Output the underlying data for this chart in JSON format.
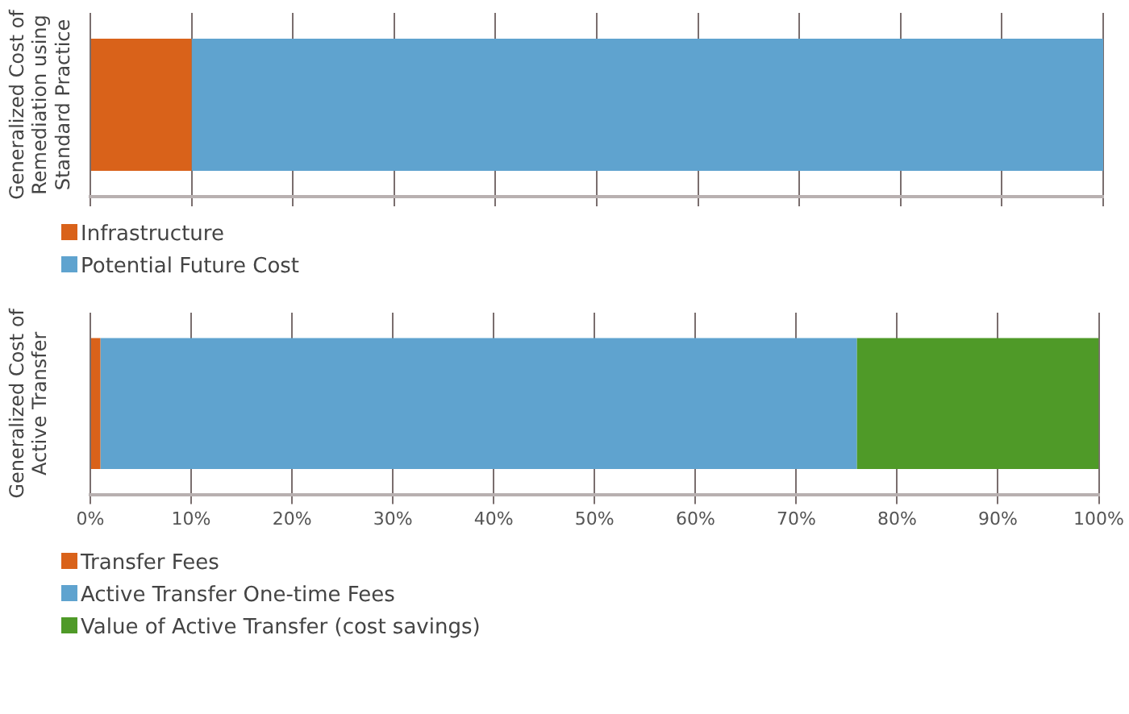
{
  "chart_data": [
    {
      "type": "bar",
      "orientation": "horizontal",
      "stacked": true,
      "ylabel": "Generalized Cost of Remediation using Standard Practice",
      "categories": [
        null
      ],
      "series": [
        {
          "name": "Infrastructure",
          "color": "#d9621a",
          "values": [
            10
          ]
        },
        {
          "name": "Potential Future Cost",
          "color": "#5fa3cf",
          "values": [
            90
          ]
        }
      ],
      "xlim": [
        0,
        100
      ],
      "xticks": [
        0,
        10,
        20,
        30,
        40,
        50,
        60,
        70,
        80,
        90,
        100
      ],
      "tick_labels": false,
      "grid": "x",
      "legend": "bottom left"
    },
    {
      "type": "bar",
      "orientation": "horizontal",
      "stacked": true,
      "ylabel": "Generalized Cost of Active Transfer",
      "categories": [
        null
      ],
      "series": [
        {
          "name": "Transfer Fees",
          "color": "#d9621a",
          "values": [
            1
          ]
        },
        {
          "name": "Active Transfer One-time Fees",
          "color": "#5fa3cf",
          "values": [
            75
          ]
        },
        {
          "name": "Value of Active Transfer (cost savings)",
          "color": "#4f9a28",
          "values": [
            24
          ]
        }
      ],
      "xlim": [
        0,
        100
      ],
      "xticks": [
        {
          "value": 0,
          "label": "0%"
        },
        {
          "value": 10,
          "label": "10%"
        },
        {
          "value": 20,
          "label": "20%"
        },
        {
          "value": 30,
          "label": "30%"
        },
        {
          "value": 40,
          "label": "40%"
        },
        {
          "value": 50,
          "label": "50%"
        },
        {
          "value": 60,
          "label": "60%"
        },
        {
          "value": 70,
          "label": "70%"
        },
        {
          "value": 80,
          "label": "80%"
        },
        {
          "value": 90,
          "label": "90%"
        },
        {
          "value": 100,
          "label": "100%"
        }
      ],
      "tick_labels": "x",
      "grid": "x",
      "legend": "bottom left"
    }
  ]
}
